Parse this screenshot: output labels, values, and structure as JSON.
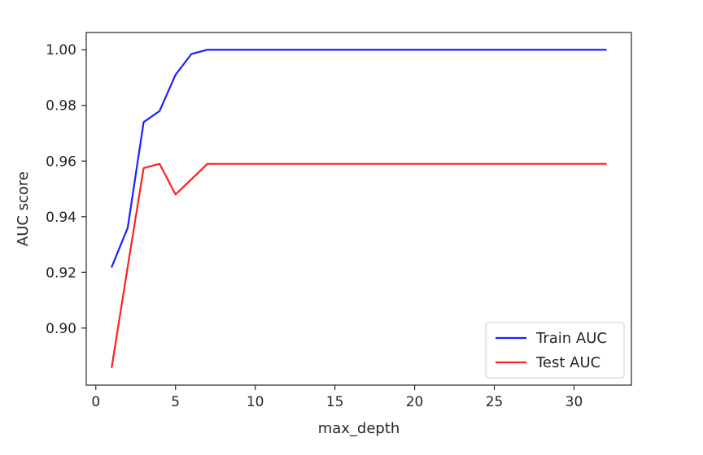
{
  "chart_data": {
    "type": "line",
    "title": "",
    "xlabel": "max_depth",
    "ylabel": "AUC score",
    "xlim": [
      -0.6,
      33.6
    ],
    "ylim": [
      0.8795,
      1.0062
    ],
    "xticks": [
      0,
      5,
      10,
      15,
      20,
      25,
      30
    ],
    "xtick_labels": [
      "0",
      "5",
      "10",
      "15",
      "20",
      "25",
      "30"
    ],
    "yticks": [
      0.9,
      0.92,
      0.94,
      0.96,
      0.98,
      1.0
    ],
    "ytick_labels": [
      "0.90",
      "0.92",
      "0.94",
      "0.96",
      "0.98",
      "1.00"
    ],
    "grid": false,
    "legend_position": "lower-right",
    "x": [
      1,
      2,
      3,
      4,
      5,
      6,
      7,
      8,
      9,
      10,
      11,
      12,
      13,
      14,
      15,
      16,
      17,
      18,
      19,
      20,
      21,
      22,
      23,
      24,
      25,
      26,
      27,
      28,
      29,
      30,
      31,
      32
    ],
    "series": [
      {
        "name": "Train AUC",
        "color": "#1f1fff",
        "values": [
          0.922,
          0.936,
          0.974,
          0.978,
          0.991,
          0.9985,
          1.0,
          1.0,
          1.0,
          1.0,
          1.0,
          1.0,
          1.0,
          1.0,
          1.0,
          1.0,
          1.0,
          1.0,
          1.0,
          1.0,
          1.0,
          1.0,
          1.0,
          1.0,
          1.0,
          1.0,
          1.0,
          1.0,
          1.0,
          1.0,
          1.0,
          1.0
        ]
      },
      {
        "name": "Test AUC",
        "color": "#ff1f1f",
        "values": [
          0.886,
          0.922,
          0.9575,
          0.959,
          0.948,
          0.9535,
          0.959,
          0.959,
          0.959,
          0.959,
          0.959,
          0.959,
          0.959,
          0.959,
          0.959,
          0.959,
          0.959,
          0.959,
          0.959,
          0.959,
          0.959,
          0.959,
          0.959,
          0.959,
          0.959,
          0.959,
          0.959,
          0.959,
          0.959,
          0.959,
          0.959,
          0.959
        ]
      }
    ]
  }
}
